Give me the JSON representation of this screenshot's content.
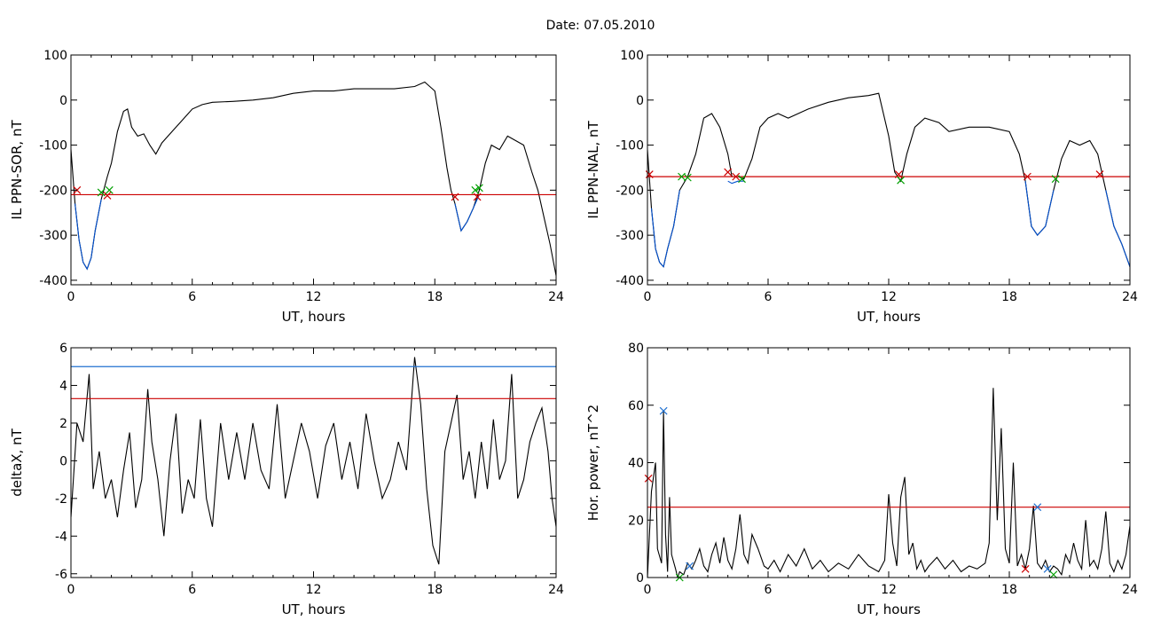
{
  "figure_title": "Date:  07.05.2010",
  "chart_data": [
    {
      "id": "p1",
      "type": "line",
      "xlabel": "UT, hours",
      "ylabel": "IL PPN-SOR, nT",
      "xlim": [
        0,
        24
      ],
      "ylim": [
        -410,
        100
      ],
      "xticks": [
        0,
        6,
        12,
        18,
        24
      ],
      "yticks": [
        100,
        0,
        -100,
        -200,
        -300,
        -400
      ],
      "series": [
        {
          "color": "#000000",
          "x": [
            0,
            0.2,
            0.4,
            0.6,
            0.8,
            1.0,
            1.2,
            1.5,
            1.8,
            2.0,
            2.3,
            2.6,
            2.8,
            3.0,
            3.3,
            3.6,
            3.9,
            4.2,
            4.5,
            5.0,
            5.5,
            6.0,
            6.5,
            7.0,
            8.0,
            9.0,
            10.0,
            11.0,
            12.0,
            13.0,
            14.0,
            15.0,
            16.0,
            17.0,
            17.5,
            18.0,
            18.3,
            18.6,
            18.8,
            19.0,
            19.3,
            19.6,
            19.9,
            20.2,
            20.5,
            20.8,
            21.2,
            21.6,
            22.0,
            22.4,
            22.8,
            23.1,
            23.4,
            23.7,
            24.0
          ],
          "y": [
            -110,
            -230,
            -310,
            -360,
            -375,
            -350,
            -290,
            -220,
            -170,
            -140,
            -70,
            -25,
            -20,
            -60,
            -80,
            -75,
            -100,
            -120,
            -95,
            -70,
            -45,
            -20,
            -10,
            -5,
            -3,
            0,
            5,
            15,
            20,
            20,
            25,
            25,
            25,
            30,
            40,
            20,
            -60,
            -150,
            -200,
            -230,
            -290,
            -270,
            -240,
            -200,
            -140,
            -100,
            -110,
            -80,
            -90,
            -100,
            -160,
            -200,
            -260,
            -320,
            -390
          ]
        },
        {
          "color": "#0050d0",
          "x": [
            0.2,
            0.4,
            0.6,
            0.8,
            1.0,
            1.2,
            1.5
          ],
          "y": [
            -230,
            -310,
            -360,
            -375,
            -350,
            -290,
            -220
          ]
        },
        {
          "color": "#0050d0",
          "x": [
            19.0,
            19.3,
            19.6,
            19.9,
            20.2
          ],
          "y": [
            -230,
            -290,
            -270,
            -240,
            -210
          ]
        }
      ],
      "hlines": [
        {
          "y": -210,
          "color": "#cc0000"
        }
      ],
      "markers": [
        {
          "x": 0.3,
          "y": -200,
          "color": "#cc0000"
        },
        {
          "x": 1.5,
          "y": -205,
          "color": "#00a000"
        },
        {
          "x": 1.8,
          "y": -212,
          "color": "#cc0000"
        },
        {
          "x": 1.9,
          "y": -200,
          "color": "#00a000"
        },
        {
          "x": 19.0,
          "y": -215,
          "color": "#cc0000"
        },
        {
          "x": 20.0,
          "y": -200,
          "color": "#00a000"
        },
        {
          "x": 20.1,
          "y": -215,
          "color": "#cc0000"
        },
        {
          "x": 20.2,
          "y": -195,
          "color": "#00a000"
        }
      ]
    },
    {
      "id": "p2",
      "type": "line",
      "xlabel": "UT, hours",
      "ylabel": "IL PPN-NAL, nT",
      "xlim": [
        0,
        24
      ],
      "ylim": [
        -410,
        100
      ],
      "xticks": [
        0,
        6,
        12,
        18,
        24
      ],
      "yticks": [
        100,
        0,
        -100,
        -200,
        -300,
        -400
      ],
      "series": [
        {
          "color": "#000000",
          "x": [
            0,
            0.2,
            0.4,
            0.6,
            0.8,
            1.0,
            1.3,
            1.6,
            2.0,
            2.4,
            2.8,
            3.2,
            3.6,
            4.0,
            4.2,
            4.5,
            4.8,
            5.2,
            5.6,
            6.0,
            6.5,
            7.0,
            8.0,
            9.0,
            10.0,
            11.0,
            11.5,
            12.0,
            12.3,
            12.6,
            12.9,
            13.3,
            13.8,
            14.5,
            15.0,
            16.0,
            17.0,
            18.0,
            18.5,
            18.8,
            19.1,
            19.4,
            19.8,
            20.2,
            20.6,
            21.0,
            21.5,
            22.0,
            22.4,
            22.8,
            23.2,
            23.6,
            24.0
          ],
          "y": [
            -110,
            -240,
            -330,
            -360,
            -370,
            -330,
            -280,
            -200,
            -170,
            -120,
            -40,
            -30,
            -60,
            -120,
            -170,
            -170,
            -175,
            -130,
            -60,
            -40,
            -30,
            -40,
            -20,
            -5,
            5,
            10,
            15,
            -80,
            -160,
            -180,
            -120,
            -60,
            -40,
            -50,
            -70,
            -60,
            -60,
            -70,
            -120,
            -180,
            -280,
            -300,
            -280,
            -200,
            -130,
            -90,
            -100,
            -90,
            -120,
            -200,
            -280,
            -320,
            -370
          ]
        },
        {
          "color": "#0050d0",
          "x": [
            0.2,
            0.4,
            0.6,
            0.8,
            1.0,
            1.3,
            1.6
          ],
          "y": [
            -240,
            -330,
            -360,
            -370,
            -330,
            -280,
            -200
          ]
        },
        {
          "color": "#0050d0",
          "x": [
            4.0,
            4.2,
            4.5,
            4.8
          ],
          "y": [
            -180,
            -185,
            -180,
            -180
          ]
        },
        {
          "color": "#0050d0",
          "x": [
            18.8,
            19.1,
            19.4,
            19.8,
            20.2
          ],
          "y": [
            -180,
            -280,
            -300,
            -280,
            -200
          ]
        },
        {
          "color": "#0050d0",
          "x": [
            22.8,
            23.2,
            23.6,
            24.0
          ],
          "y": [
            -200,
            -280,
            -320,
            -370
          ]
        }
      ],
      "hlines": [
        {
          "y": -170,
          "color": "#cc0000"
        }
      ],
      "markers": [
        {
          "x": 0.1,
          "y": -165,
          "color": "#cc0000"
        },
        {
          "x": 1.7,
          "y": -170,
          "color": "#00a000"
        },
        {
          "x": 2.0,
          "y": -172,
          "color": "#00a000"
        },
        {
          "x": 4.0,
          "y": -160,
          "color": "#cc0000"
        },
        {
          "x": 4.4,
          "y": -170,
          "color": "#cc0000"
        },
        {
          "x": 4.7,
          "y": -175,
          "color": "#00a000"
        },
        {
          "x": 12.5,
          "y": -165,
          "color": "#cc0000"
        },
        {
          "x": 12.6,
          "y": -178,
          "color": "#00a000"
        },
        {
          "x": 18.9,
          "y": -170,
          "color": "#cc0000"
        },
        {
          "x": 20.3,
          "y": -175,
          "color": "#00a000"
        },
        {
          "x": 22.5,
          "y": -165,
          "color": "#cc0000"
        }
      ]
    },
    {
      "id": "p3",
      "type": "line",
      "xlabel": "UT, hours",
      "ylabel": "deltaX, nT",
      "xlim": [
        0,
        24
      ],
      "ylim": [
        -6.2,
        6
      ],
      "xticks": [
        0,
        6,
        12,
        18,
        24
      ],
      "yticks": [
        6,
        4,
        2,
        0,
        -2,
        -4,
        -6
      ],
      "series": [
        {
          "color": "#000000",
          "x": [
            0,
            0.3,
            0.6,
            0.9,
            1.1,
            1.4,
            1.7,
            2.0,
            2.3,
            2.6,
            2.9,
            3.2,
            3.5,
            3.8,
            4.0,
            4.3,
            4.6,
            4.9,
            5.2,
            5.5,
            5.8,
            6.1,
            6.4,
            6.7,
            7.0,
            7.4,
            7.8,
            8.2,
            8.6,
            9.0,
            9.4,
            9.8,
            10.2,
            10.6,
            11.0,
            11.4,
            11.8,
            12.2,
            12.6,
            13.0,
            13.4,
            13.8,
            14.2,
            14.6,
            15.0,
            15.4,
            15.8,
            16.2,
            16.6,
            17.0,
            17.3,
            17.6,
            17.9,
            18.2,
            18.5,
            18.8,
            19.1,
            19.4,
            19.7,
            20.0,
            20.3,
            20.6,
            20.9,
            21.2,
            21.5,
            21.8,
            22.1,
            22.4,
            22.7,
            23.0,
            23.3,
            23.6,
            23.8,
            24.0
          ],
          "y": [
            -3,
            2,
            1,
            4.6,
            -1.5,
            0.5,
            -2,
            -1,
            -3,
            -0.5,
            1.5,
            -2.5,
            -1,
            3.8,
            1,
            -1,
            -4,
            0,
            2.5,
            -2.8,
            -1,
            -2,
            2.2,
            -2,
            -3.5,
            2,
            -1,
            1.5,
            -1,
            2,
            -0.5,
            -1.5,
            3,
            -2,
            0,
            2,
            0.5,
            -2,
            0.8,
            2,
            -1,
            1,
            -1.5,
            2.5,
            0,
            -2,
            -1,
            1,
            -0.5,
            5.5,
            3,
            -1.5,
            -4.5,
            -5.5,
            0.5,
            2,
            3.5,
            -1,
            0.5,
            -2,
            1,
            -1.5,
            2.2,
            -1,
            0,
            4.6,
            -2,
            -1,
            1,
            2,
            2.8,
            0.5,
            -2,
            -3.5
          ]
        }
      ],
      "hlines": [
        {
          "y": 5,
          "color": "#2070d0"
        },
        {
          "y": 3.3,
          "color": "#cc0000"
        }
      ],
      "markers": []
    },
    {
      "id": "p4",
      "type": "line",
      "xlabel": "UT, hours",
      "ylabel": "Hor. power, nT^2",
      "xlim": [
        0,
        24
      ],
      "ylim": [
        0,
        80
      ],
      "xticks": [
        0,
        6,
        12,
        18,
        24
      ],
      "yticks": [
        0,
        20,
        40,
        60,
        80
      ],
      "series": [
        {
          "color": "#000000",
          "x": [
            0,
            0.2,
            0.4,
            0.5,
            0.7,
            0.8,
            0.9,
            1.0,
            1.1,
            1.2,
            1.4,
            1.5,
            1.6,
            1.8,
            2.0,
            2.2,
            2.4,
            2.6,
            2.8,
            3.0,
            3.2,
            3.4,
            3.6,
            3.8,
            4.0,
            4.2,
            4.4,
            4.6,
            4.8,
            5.0,
            5.2,
            5.5,
            5.8,
            6.0,
            6.3,
            6.6,
            7.0,
            7.4,
            7.8,
            8.2,
            8.6,
            9.0,
            9.5,
            10.0,
            10.5,
            11.0,
            11.5,
            11.8,
            12.0,
            12.2,
            12.4,
            12.6,
            12.8,
            13.0,
            13.2,
            13.4,
            13.6,
            13.8,
            14.0,
            14.4,
            14.8,
            15.2,
            15.6,
            16.0,
            16.4,
            16.8,
            17.0,
            17.2,
            17.4,
            17.6,
            17.8,
            18.0,
            18.2,
            18.4,
            18.6,
            18.8,
            19.0,
            19.2,
            19.4,
            19.6,
            19.8,
            20.0,
            20.2,
            20.4,
            20.6,
            20.8,
            21.0,
            21.2,
            21.4,
            21.6,
            21.8,
            22.0,
            22.2,
            22.4,
            22.6,
            22.8,
            23.0,
            23.2,
            23.4,
            23.6,
            23.8,
            24.0
          ],
          "y": [
            0,
            30,
            40,
            10,
            5,
            58,
            15,
            2,
            28,
            8,
            3,
            0,
            2,
            1,
            5,
            3,
            6,
            10,
            4,
            2,
            8,
            12,
            5,
            14,
            6,
            3,
            10,
            22,
            8,
            5,
            15,
            10,
            4,
            3,
            6,
            2,
            8,
            4,
            10,
            3,
            6,
            2,
            5,
            3,
            8,
            4,
            2,
            6,
            29,
            12,
            4,
            28,
            35,
            8,
            12,
            3,
            6,
            2,
            4,
            7,
            3,
            6,
            2,
            4,
            3,
            5,
            12,
            66,
            20,
            52,
            10,
            5,
            40,
            4,
            8,
            3,
            10,
            25,
            5,
            3,
            6,
            2,
            4,
            3,
            1,
            8,
            5,
            12,
            6,
            3,
            20,
            4,
            6,
            3,
            10,
            23,
            5,
            2,
            6,
            3,
            8,
            18
          ]
        }
      ],
      "hlines": [
        {
          "y": 24.5,
          "color": "#cc0000"
        }
      ],
      "markers": [
        {
          "x": 0.05,
          "y": 34.5,
          "color": "#cc0000"
        },
        {
          "x": 0.8,
          "y": 58,
          "color": "#2070d0"
        },
        {
          "x": 1.6,
          "y": 0,
          "color": "#00a000"
        },
        {
          "x": 2.1,
          "y": 4,
          "color": "#2070d0"
        },
        {
          "x": 18.8,
          "y": 3,
          "color": "#cc0000"
        },
        {
          "x": 19.4,
          "y": 24.5,
          "color": "#2070d0"
        },
        {
          "x": 19.9,
          "y": 3,
          "color": "#2070d0"
        },
        {
          "x": 20.2,
          "y": 1,
          "color": "#00a000"
        }
      ]
    }
  ]
}
